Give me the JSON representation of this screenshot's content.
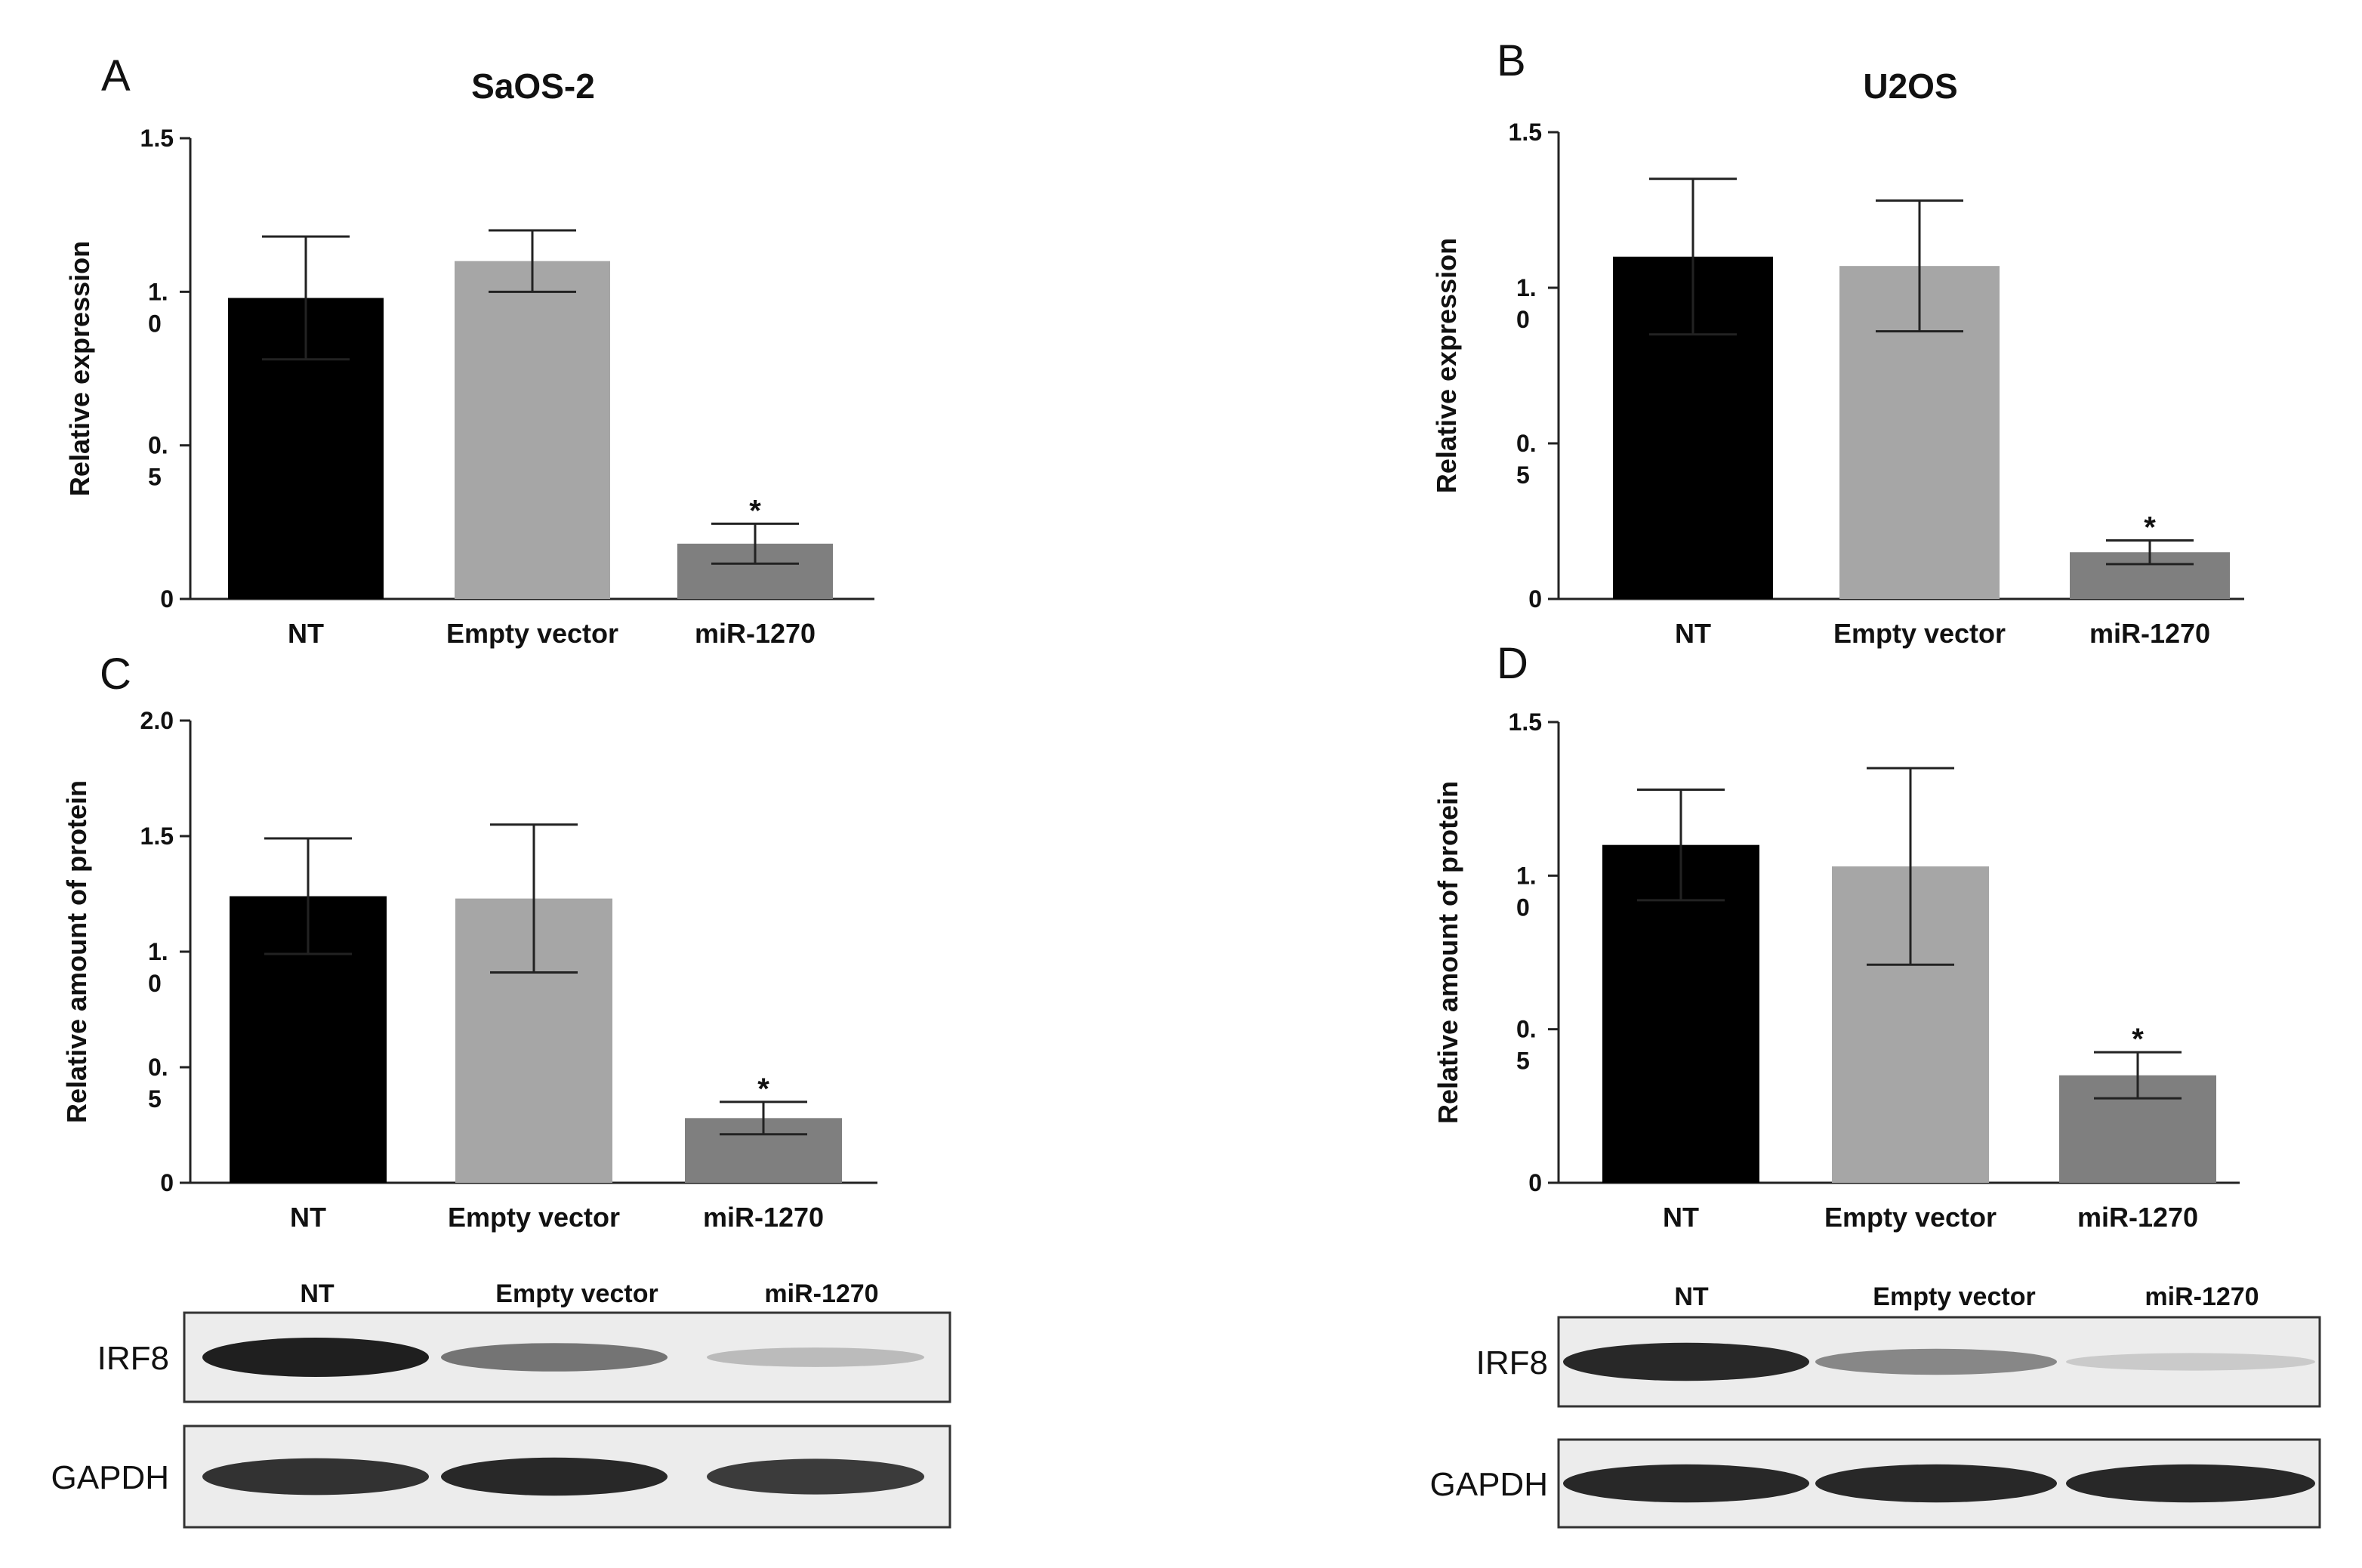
{
  "chart_data": [
    {
      "panel": "A",
      "type": "bar",
      "title": "SaOS-2",
      "ylabel": "Relative expression",
      "ylim": [
        0,
        1.5
      ],
      "ytick_labels": [
        "0",
        "0.\n5",
        "1.\n0",
        "1.5"
      ],
      "ytick_values": [
        0,
        0.5,
        1.0,
        1.5
      ],
      "categories": [
        "NT",
        "Empty vector",
        "miR-1270"
      ],
      "values": [
        0.98,
        1.1,
        0.18
      ],
      "errors": [
        0.2,
        0.1,
        0.065
      ],
      "bar_colors": [
        "#000000",
        "#a6a6a6",
        "#7f7f7f"
      ],
      "significance": [
        "",
        "",
        "*"
      ]
    },
    {
      "panel": "B",
      "type": "bar",
      "title": "U2OS",
      "ylabel": "Relative expression",
      "ylim": [
        0,
        1.5
      ],
      "ytick_labels": [
        "0",
        "0.\n5",
        "1.\n0",
        "1.5"
      ],
      "ytick_values": [
        0,
        0.5,
        1.0,
        1.5
      ],
      "categories": [
        "NT",
        "Empty vector",
        "miR-1270"
      ],
      "values": [
        1.1,
        1.07,
        0.15
      ],
      "errors": [
        0.25,
        0.21,
        0.038
      ],
      "bar_colors": [
        "#000000",
        "#a6a6a6",
        "#7f7f7f"
      ],
      "significance": [
        "",
        "",
        "*"
      ]
    },
    {
      "panel": "C",
      "type": "bar",
      "title": "",
      "ylabel": "Relative amount of protein",
      "ylim": [
        0,
        2.0
      ],
      "ytick_labels": [
        "0",
        "0.\n5",
        "1.\n0",
        "1.5",
        "2.0"
      ],
      "ytick_values": [
        0,
        0.5,
        1.0,
        1.5,
        2.0
      ],
      "categories": [
        "NT",
        "Empty vector",
        "miR-1270"
      ],
      "values": [
        1.24,
        1.23,
        0.28
      ],
      "errors": [
        0.25,
        0.32,
        0.07
      ],
      "bar_colors": [
        "#000000",
        "#a6a6a6",
        "#7f7f7f"
      ],
      "significance": [
        "",
        "",
        "*"
      ]
    },
    {
      "panel": "D",
      "type": "bar",
      "title": "",
      "ylabel": "Relative amount of protein",
      "ylim": [
        0,
        1.5
      ],
      "ytick_labels": [
        "0",
        "0.\n5",
        "1.\n0",
        "1.5"
      ],
      "ytick_values": [
        0,
        0.5,
        1.0,
        1.5
      ],
      "categories": [
        "NT",
        "Empty vector",
        "miR-1270"
      ],
      "values": [
        1.1,
        1.03,
        0.35
      ],
      "errors": [
        0.18,
        0.32,
        0.075
      ],
      "bar_colors": [
        "#000000",
        "#a6a6a6",
        "#7f7f7f"
      ],
      "significance": [
        "",
        "",
        "*"
      ]
    }
  ],
  "blots": [
    {
      "panel": "C",
      "lane_labels": [
        "NT",
        "Empty vector",
        "miR-1270"
      ],
      "rows": [
        {
          "label": "IRF8",
          "band_intensity": [
            1.0,
            0.55,
            0.18
          ]
        },
        {
          "label": "GAPDH",
          "band_intensity": [
            0.9,
            0.95,
            0.85
          ]
        }
      ]
    },
    {
      "panel": "D",
      "lane_labels": [
        "NT",
        "Empty vector",
        "miR-1270"
      ],
      "rows": [
        {
          "label": "IRF8",
          "band_intensity": [
            0.95,
            0.45,
            0.1
          ]
        },
        {
          "label": "GAPDH",
          "band_intensity": [
            0.95,
            0.95,
            0.95
          ]
        }
      ]
    }
  ]
}
